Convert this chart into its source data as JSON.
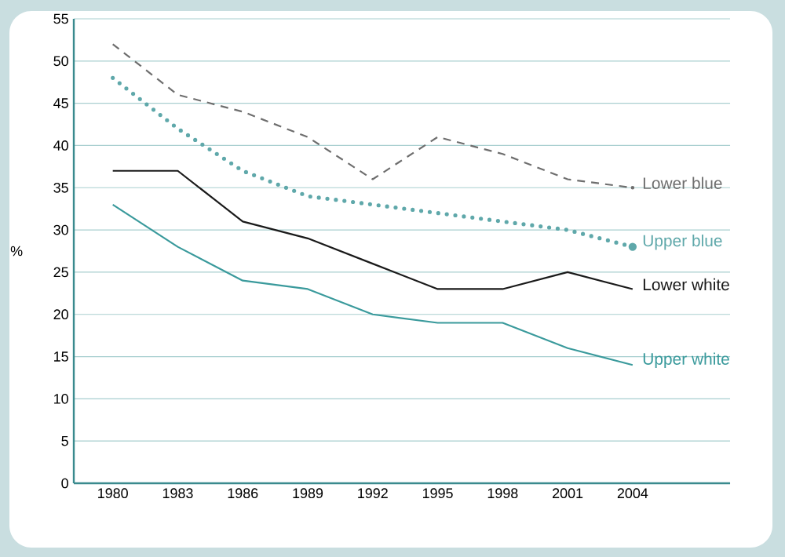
{
  "chart_data": {
    "type": "line",
    "ylabel": "%",
    "categories": [
      "1980",
      "1983",
      "1986",
      "1989",
      "1992",
      "1995",
      "1998",
      "2001",
      "2004"
    ],
    "series": [
      {
        "name": "Lower blue",
        "color": "#6e6e6e",
        "line_style": "dashed",
        "values": [
          52,
          46,
          44,
          41,
          36,
          41,
          39,
          36,
          35
        ]
      },
      {
        "name": "Upper blue",
        "color": "#5fa8aa",
        "line_style": "dotted",
        "values": [
          48,
          42,
          37,
          34,
          33,
          32,
          31,
          30,
          28
        ]
      },
      {
        "name": "Lower white",
        "color": "#1a1a1a",
        "line_style": "solid",
        "values": [
          37,
          37,
          31,
          29,
          26,
          23,
          23,
          25,
          23
        ]
      },
      {
        "name": "Upper white",
        "color": "#3a9a9c",
        "line_style": "solid",
        "values": [
          33,
          28,
          24,
          23,
          20,
          19,
          19,
          16,
          14
        ]
      }
    ],
    "ylim": [
      0,
      55
    ],
    "yticks": [
      0,
      5,
      10,
      15,
      20,
      25,
      30,
      35,
      40,
      45,
      50,
      55
    ],
    "grid": "y",
    "legend": false,
    "marker": "none"
  }
}
